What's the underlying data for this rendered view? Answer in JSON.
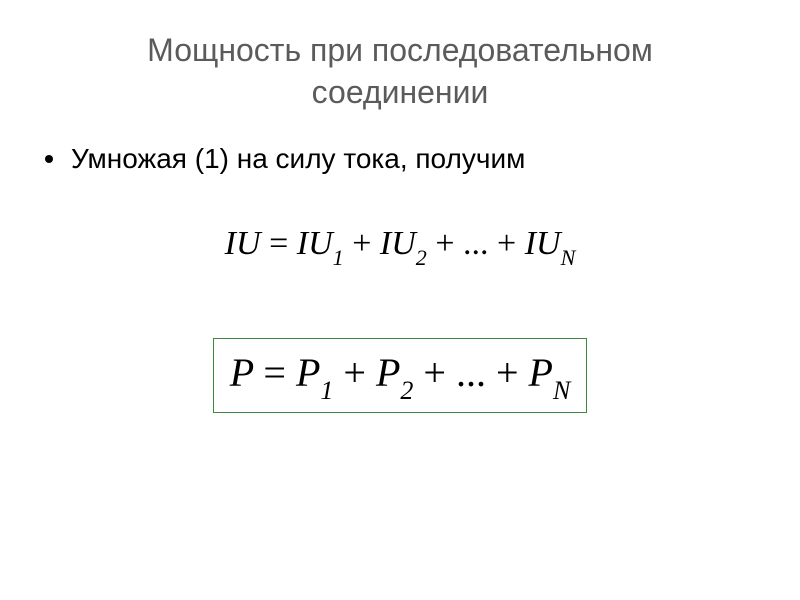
{
  "title": {
    "line1": "Мощность при последовательном",
    "line2": "соединении",
    "color": "#5b5b5b",
    "fontsize": 32
  },
  "bullet": {
    "text": "Умножая (1) на силу тока, получим",
    "fontsize": 28,
    "color": "#000000",
    "bullet_color": "#000000"
  },
  "equation1": {
    "lhs_var": "IU",
    "terms_var": "IU",
    "sub1": "1",
    "sub2": "2",
    "subN": "N",
    "dots": "...",
    "equals": "=",
    "plus": "+",
    "fontsize": 34,
    "color": "#000000"
  },
  "equation2": {
    "lhs_var": "P",
    "terms_var": "P",
    "sub1": "1",
    "sub2": "2",
    "subN": "N",
    "dots": "...",
    "equals": "=",
    "plus": "+",
    "fontsize": 40,
    "color": "#000000",
    "border_color": "#3a8a3a"
  },
  "background_color": "#ffffff"
}
